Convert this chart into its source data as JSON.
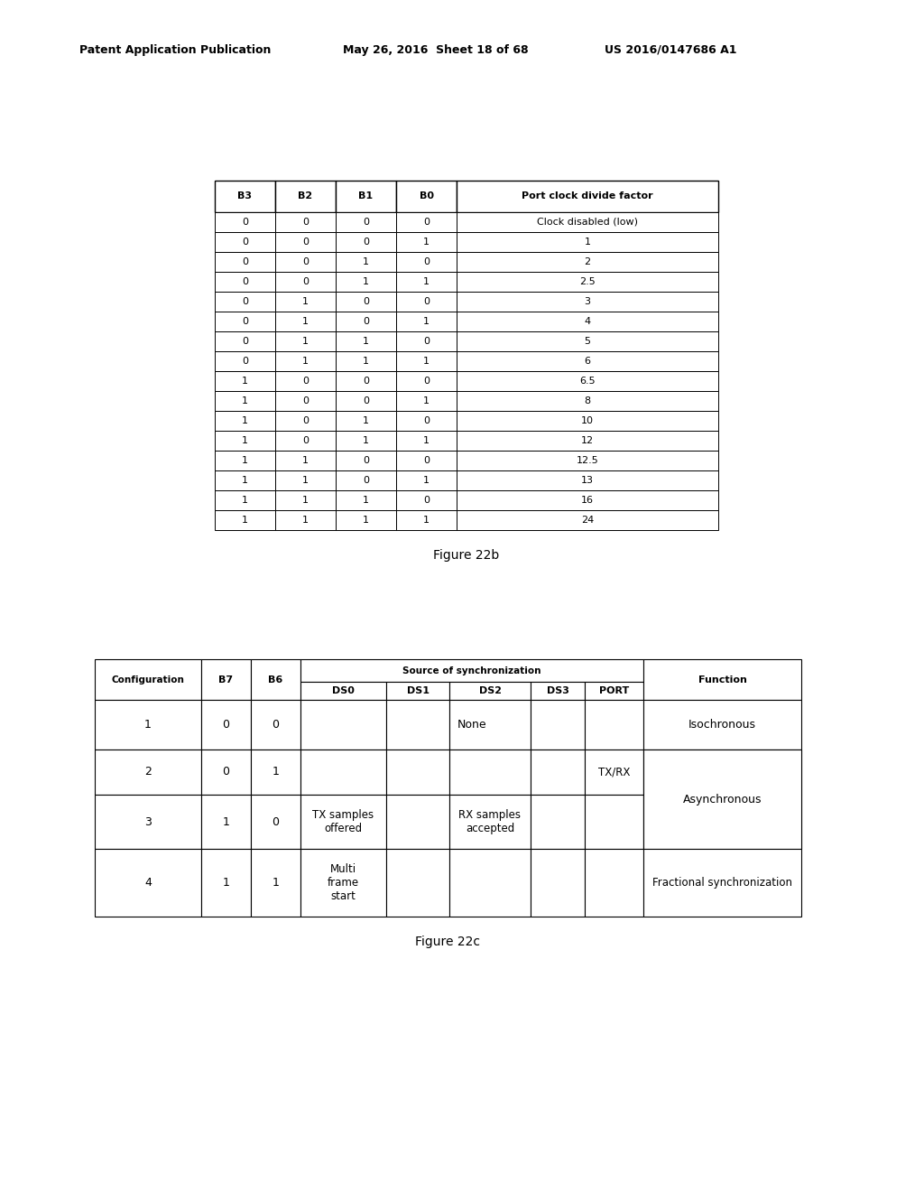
{
  "header_text_left": "Patent Application Publication",
  "header_text_mid": "May 26, 2016  Sheet 18 of 68",
  "header_text_right": "US 2016/0147686 A1",
  "fig22b_caption": "Figure 22b",
  "fig22c_caption": "Figure 22c",
  "table1": {
    "headers": [
      "B3",
      "B2",
      "B1",
      "B0",
      "Port clock divide factor"
    ],
    "rows": [
      [
        "0",
        "0",
        "0",
        "0",
        "Clock disabled (low)"
      ],
      [
        "0",
        "0",
        "0",
        "1",
        "1"
      ],
      [
        "0",
        "0",
        "1",
        "0",
        "2"
      ],
      [
        "0",
        "0",
        "1",
        "1",
        "2.5"
      ],
      [
        "0",
        "1",
        "0",
        "0",
        "3"
      ],
      [
        "0",
        "1",
        "0",
        "1",
        "4"
      ],
      [
        "0",
        "1",
        "1",
        "0",
        "5"
      ],
      [
        "0",
        "1",
        "1",
        "1",
        "6"
      ],
      [
        "1",
        "0",
        "0",
        "0",
        "6.5"
      ],
      [
        "1",
        "0",
        "0",
        "1",
        "8"
      ],
      [
        "1",
        "0",
        "1",
        "0",
        "10"
      ],
      [
        "1",
        "0",
        "1",
        "1",
        "12"
      ],
      [
        "1",
        "1",
        "0",
        "0",
        "12.5"
      ],
      [
        "1",
        "1",
        "0",
        "1",
        "13"
      ],
      [
        "1",
        "1",
        "1",
        "0",
        "16"
      ],
      [
        "1",
        "1",
        "1",
        "1",
        "24"
      ]
    ]
  },
  "bg_color": "#ffffff",
  "text_color": "#000000",
  "border_color": "#000000"
}
